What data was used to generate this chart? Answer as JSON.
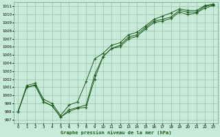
{
  "title": "Graphe pression niveau de la mer (hPa)",
  "background_color": "#c8ead8",
  "plot_bg_color": "#c8ead8",
  "grid_color": "#9abfaa",
  "line_color": "#1e5c1e",
  "x_ticks": [
    0,
    1,
    2,
    3,
    4,
    5,
    6,
    7,
    8,
    9,
    10,
    11,
    12,
    13,
    14,
    15,
    16,
    17,
    18,
    19,
    20,
    21,
    22,
    23
  ],
  "ylim": [
    996.5,
    1011.5
  ],
  "y_ticks": [
    997,
    998,
    999,
    1000,
    1001,
    1002,
    1003,
    1004,
    1005,
    1006,
    1007,
    1008,
    1009,
    1010,
    1011
  ],
  "series1": [
    998.0,
    1001.0,
    1001.2,
    999.2,
    998.7,
    997.3,
    998.0,
    998.4,
    998.5,
    1002.0,
    1004.8,
    1005.8,
    1006.0,
    1007.0,
    1007.3,
    1008.2,
    1009.0,
    1009.2,
    1009.5,
    1010.3,
    1010.0,
    1010.2,
    1010.8,
    1011.1
  ],
  "series2": [
    998.0,
    1001.0,
    1001.3,
    999.2,
    998.7,
    997.3,
    998.2,
    998.5,
    998.8,
    1002.5,
    1004.8,
    1005.8,
    1006.2,
    1007.2,
    1007.5,
    1008.4,
    1009.2,
    1009.4,
    1009.7,
    1010.5,
    1010.3,
    1010.3,
    1011.0,
    1011.2
  ],
  "series3": [
    998.0,
    1001.2,
    1001.5,
    999.5,
    999.0,
    997.5,
    998.8,
    999.2,
    1001.7,
    1004.5,
    1005.2,
    1006.2,
    1006.5,
    1007.5,
    1007.8,
    1008.6,
    1009.4,
    1009.8,
    1010.2,
    1010.7,
    1010.5,
    1010.5,
    1011.1,
    1011.3
  ]
}
